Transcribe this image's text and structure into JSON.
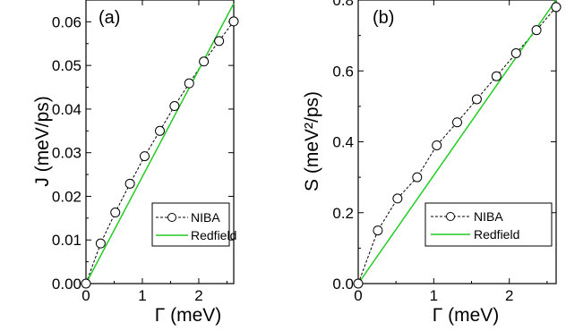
{
  "chart_data": [
    {
      "type": "line",
      "panel_label": "(a)",
      "xlabel": "Γ (meV)",
      "ylabel": "J (meV/ps)",
      "xlim": [
        0,
        2.62
      ],
      "ylim": [
        0,
        0.065
      ],
      "xticks": [
        0,
        1,
        2
      ],
      "xtick_labels": [
        "0",
        "1",
        "2"
      ],
      "yticks": [
        0.0,
        0.01,
        0.02,
        0.03,
        0.04,
        0.05,
        0.06
      ],
      "ytick_labels": [
        "0.00",
        "0.01",
        "0.02",
        "0.03",
        "0.04",
        "0.05",
        "0.06"
      ],
      "legend_position": "bottom-right",
      "series": [
        {
          "name": "NIBA",
          "style": "dashed-black-open-circles",
          "color": "#000000",
          "x": [
            0,
            0.26,
            0.52,
            0.78,
            1.04,
            1.31,
            1.57,
            1.83,
            2.09,
            2.36,
            2.62
          ],
          "y": [
            0.0,
            0.0092,
            0.0163,
            0.0229,
            0.0292,
            0.035,
            0.0407,
            0.0459,
            0.0509,
            0.0556,
            0.0601
          ]
        },
        {
          "name": "Redfield",
          "style": "solid-green",
          "color": "#22cc22",
          "x": [
            0,
            2.62
          ],
          "y": [
            0.0,
            0.0642
          ]
        }
      ]
    },
    {
      "type": "line",
      "panel_label": "(b)",
      "xlabel": "Γ (meV)",
      "ylabel": "S (meV²/ps)",
      "xlim": [
        0,
        2.62
      ],
      "ylim": [
        0,
        0.8
      ],
      "xticks": [
        0,
        1,
        2
      ],
      "xtick_labels": [
        "0",
        "1",
        "2"
      ],
      "yticks": [
        0.0,
        0.2,
        0.4,
        0.6,
        0.8
      ],
      "ytick_labels": [
        "0.0",
        "0.2",
        "0.4",
        "0.6",
        "0.8"
      ],
      "legend_position": "bottom-right",
      "series": [
        {
          "name": "NIBA",
          "style": "dashed-black-open-circles",
          "color": "#000000",
          "x": [
            0,
            0.26,
            0.52,
            0.78,
            1.04,
            1.31,
            1.57,
            1.83,
            2.09,
            2.36,
            2.62
          ],
          "y": [
            0.0,
            0.15,
            0.24,
            0.3,
            0.39,
            0.455,
            0.52,
            0.585,
            0.65,
            0.715,
            0.78
          ]
        },
        {
          "name": "Redfield",
          "style": "solid-green",
          "color": "#22cc22",
          "x": [
            0,
            2.62
          ],
          "y": [
            0.0,
            0.8
          ]
        }
      ]
    }
  ]
}
